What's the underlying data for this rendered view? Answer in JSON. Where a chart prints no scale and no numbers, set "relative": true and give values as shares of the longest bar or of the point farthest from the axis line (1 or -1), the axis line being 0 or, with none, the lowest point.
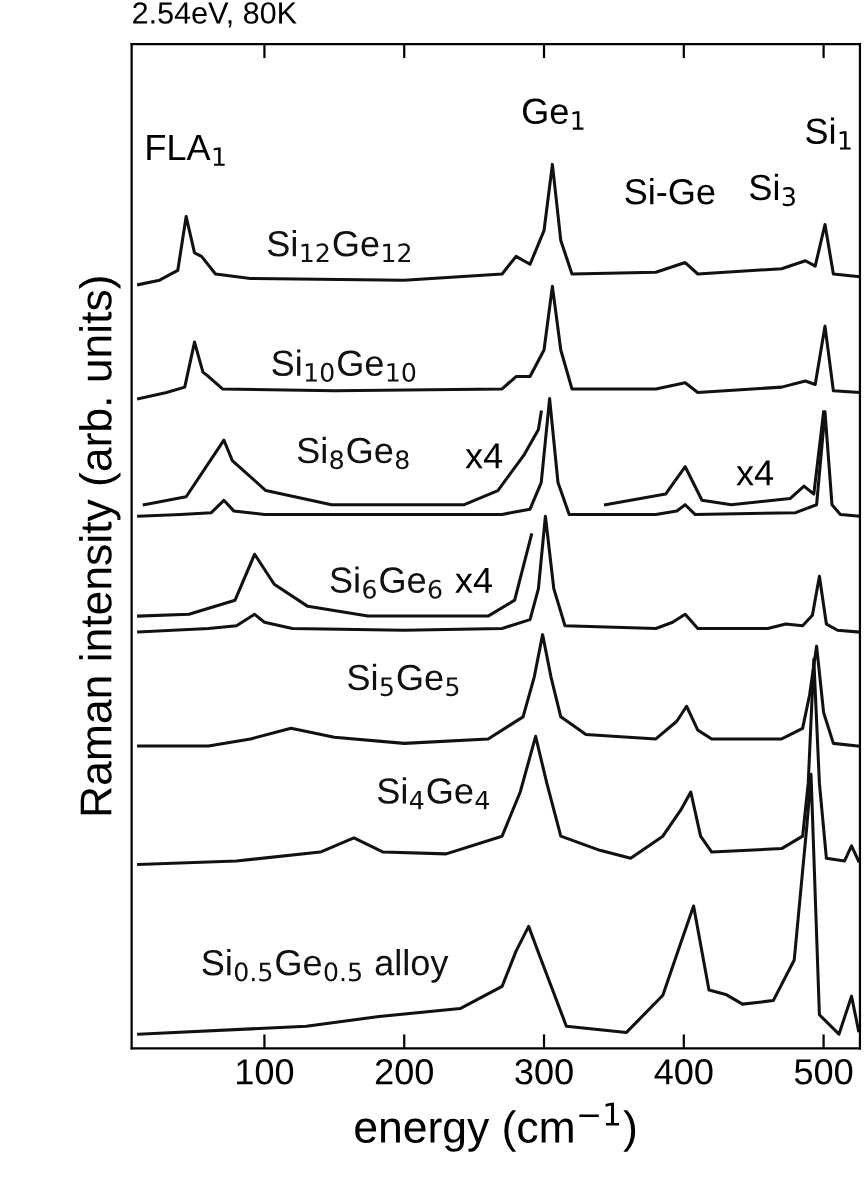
{
  "chart_data": {
    "type": "line",
    "relative": true,
    "title": "2.54eV, 80K",
    "xlabel": "energy (cm$^{−1}$)",
    "ylabel": "Raman intensity (arb. units)",
    "xlim": [
      5,
      526
    ],
    "xticks": [
      100,
      200,
      300,
      400,
      500
    ],
    "annotations": [
      "FLA$_{1}$",
      "Ge$_{1}$",
      "Si-Ge",
      "Si$_{3}$",
      "Si$_{1}$",
      "x4",
      "x4",
      "x4"
    ],
    "series": [
      {
        "name": "Si$_{12}$Ge$_{12}$",
        "color": "#111111",
        "x": [
          10,
          25,
          38,
          44,
          50,
          55,
          65,
          90,
          200,
          270,
          280,
          290,
          300,
          306,
          312,
          320,
          380,
          401,
          410,
          470,
          487,
          494,
          501,
          507,
          525
        ],
        "values": [
          0.864,
          0.869,
          0.88,
          0.941,
          0.9,
          0.896,
          0.876,
          0.871,
          0.869,
          0.876,
          0.896,
          0.887,
          0.925,
          1.0,
          0.914,
          0.876,
          0.878,
          0.889,
          0.876,
          0.882,
          0.891,
          0.885,
          0.932,
          0.876,
          0.873
        ]
      },
      {
        "name": "Si$_{10}$Ge$_{10}$",
        "color": "#111111",
        "x": [
          10,
          30,
          43,
          50,
          56,
          60,
          70,
          150,
          270,
          280,
          290,
          300,
          306,
          312,
          320,
          380,
          401,
          410,
          470,
          487,
          494,
          501,
          507,
          525
        ],
        "values": [
          0.735,
          0.742,
          0.748,
          0.799,
          0.765,
          0.76,
          0.746,
          0.744,
          0.746,
          0.76,
          0.76,
          0.79,
          0.862,
          0.79,
          0.746,
          0.746,
          0.753,
          0.742,
          0.748,
          0.755,
          0.751,
          0.817,
          0.744,
          0.742
        ]
      },
      {
        "name": "Si$_{8}$Ge$_{8}$",
        "color": "#111111",
        "x": [
          10,
          40,
          62,
          71,
          78,
          100,
          200,
          270,
          290,
          298,
          304,
          310,
          318,
          380,
          395,
          401,
          408,
          480,
          495,
          501,
          506,
          512,
          525
        ],
        "values": [
          0.602,
          0.604,
          0.606,
          0.62,
          0.608,
          0.604,
          0.604,
          0.604,
          0.61,
          0.64,
          0.735,
          0.64,
          0.604,
          0.604,
          0.608,
          0.615,
          0.604,
          0.606,
          0.615,
          0.72,
          0.615,
          0.604,
          0.602
        ]
      },
      {
        "color": "#111111",
        "x": [
          14,
          44,
          71,
          77,
          101,
          148,
          243,
          267,
          286,
          296,
          298
        ],
        "values": [
          0.615,
          0.624,
          0.688,
          0.665,
          0.631,
          0.615,
          0.615,
          0.631,
          0.672,
          0.7,
          0.72
        ]
      },
      {
        "color": "#111111",
        "x": [
          344,
          387,
          401,
          413,
          434,
          476,
          486,
          493,
          500
        ],
        "values": [
          0.615,
          0.627,
          0.658,
          0.62,
          0.615,
          0.622,
          0.636,
          0.627,
          0.72
        ]
      },
      {
        "name": "Si$_{6}$Ge$_{6}$",
        "color": "#111111",
        "x": [
          10,
          60,
          80,
          93,
          100,
          120,
          200,
          270,
          290,
          296,
          301,
          307,
          315,
          380,
          392,
          401,
          410,
          460,
          473,
          485,
          492,
          497,
          502,
          510,
          525
        ],
        "values": [
          0.471,
          0.475,
          0.478,
          0.491,
          0.482,
          0.475,
          0.473,
          0.475,
          0.485,
          0.52,
          0.602,
          0.52,
          0.478,
          0.475,
          0.482,
          0.491,
          0.475,
          0.475,
          0.48,
          0.478,
          0.49,
          0.534,
          0.48,
          0.473,
          0.471
        ]
      },
      {
        "color": "#111111",
        "x": [
          10,
          46,
          79,
          93,
          107,
          131,
          174,
          260,
          279,
          291
        ],
        "values": [
          0.489,
          0.491,
          0.507,
          0.559,
          0.525,
          0.5,
          0.489,
          0.489,
          0.507,
          0.581
        ]
      },
      {
        "name": "Si$_{5}$Ge$_{5}$",
        "color": "#111111",
        "x": [
          10,
          60,
          90,
          119,
          150,
          200,
          260,
          285,
          293,
          299,
          305,
          312,
          330,
          380,
          395,
          402,
          410,
          420,
          470,
          485,
          490,
          495,
          500,
          507,
          525
        ],
        "values": [
          0.342,
          0.342,
          0.35,
          0.362,
          0.352,
          0.345,
          0.35,
          0.375,
          0.42,
          0.468,
          0.42,
          0.375,
          0.355,
          0.35,
          0.37,
          0.387,
          0.36,
          0.35,
          0.35,
          0.362,
          0.4,
          0.455,
          0.38,
          0.345,
          0.342
        ]
      },
      {
        "name": "Si$_{4}$Ge$_{4}$",
        "color": "#111111",
        "x": [
          10,
          80,
          140,
          164,
          185,
          230,
          270,
          283,
          294,
          302,
          312,
          340,
          362,
          385,
          398,
          405,
          412,
          420,
          470,
          485,
          489,
          493,
          497,
          502,
          515,
          520,
          525
        ],
        "values": [
          0.208,
          0.212,
          0.222,
          0.238,
          0.222,
          0.22,
          0.24,
          0.29,
          0.353,
          0.3,
          0.24,
          0.224,
          0.215,
          0.24,
          0.27,
          0.29,
          0.24,
          0.222,
          0.226,
          0.24,
          0.3,
          0.44,
          0.3,
          0.215,
          0.212,
          0.229,
          0.212
        ]
      },
      {
        "name": "Si$_{0.5}$Ge$_{0.5}$ alloy",
        "color": "#111111",
        "x": [
          10,
          130,
          182,
          240,
          270,
          280,
          289,
          298,
          316,
          359,
          385,
          398,
          407,
          418,
          430,
          442,
          464,
          479,
          488,
          491,
          497,
          511,
          520,
          525
        ],
        "values": [
          0.016,
          0.025,
          0.036,
          0.045,
          0.07,
          0.11,
          0.138,
          0.1,
          0.025,
          0.018,
          0.06,
          0.12,
          0.161,
          0.066,
          0.061,
          0.05,
          0.054,
          0.1,
          0.251,
          0.31,
          0.038,
          0.016,
          0.059,
          0.02
        ]
      }
    ]
  }
}
